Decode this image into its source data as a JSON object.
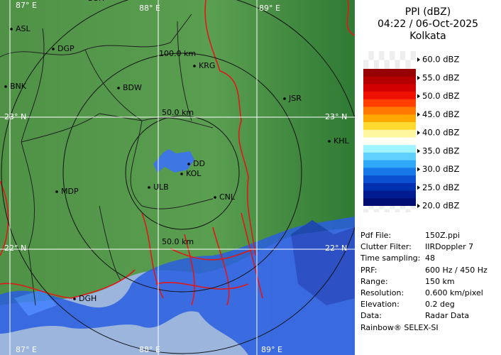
{
  "panel": {
    "title": "PPI (dBZ)",
    "time": "04:22 / 06-Oct-2025",
    "station": "Kolkata",
    "legend": {
      "labels": [
        "60.0 dBZ",
        "55.0 dBZ",
        "50.0 dBZ",
        "45.0 dBZ",
        "40.0 dBZ",
        "35.0 dBZ",
        "30.0 dBZ",
        "25.0 dBZ",
        "20.0 dBZ"
      ],
      "colors": [
        "#960000",
        "#b40000",
        "#d20000",
        "#f01000",
        "#ff4000",
        "#ff7800",
        "#ffa800",
        "#ffd830",
        "#fff6a0",
        "#fffff4",
        "#a0f4ff",
        "#60d0ff",
        "#30a8f8",
        "#1878e8",
        "#0a50d0",
        "#0030b0",
        "#001c90",
        "#000c70"
      ]
    },
    "info": [
      {
        "label": "Pdf File:",
        "value": "150Z.ppi"
      },
      {
        "label": "Clutter Filter:",
        "value": "IIRDoppler 7"
      },
      {
        "label": "Time sampling:",
        "value": "48"
      },
      {
        "label": "PRF:",
        "value": "600 Hz / 450 Hz"
      },
      {
        "label": "Range:",
        "value": "150 km"
      },
      {
        "label": "Resolution:",
        "value": "0.600 km/pixel"
      },
      {
        "label": "Elevation:",
        "value": "0.2 deg"
      },
      {
        "label": "Data:",
        "value": "Radar Data"
      }
    ],
    "footer": "Rainbow® SELEX-SI"
  },
  "map": {
    "grid_labels": [
      "87° E",
      "88° E",
      "89° E",
      "23° N",
      "23° N",
      "22° N",
      "22° N",
      "87° E",
      "88° E",
      "89° E"
    ],
    "range_labels": [
      "100.0 km",
      "50.0 km",
      "50.0 km"
    ],
    "cities": [
      "SUR",
      "ASL",
      "DGP",
      "BNK",
      "BDW",
      "KRG",
      "JSR",
      "KHL",
      "MDP",
      "DD",
      "KOL",
      "ULB",
      "CNL",
      "DGH"
    ]
  }
}
